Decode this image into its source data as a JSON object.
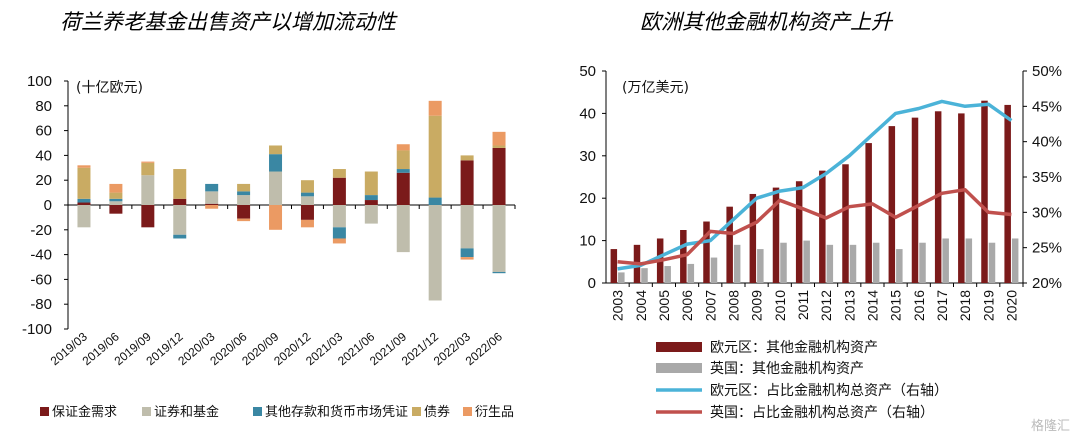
{
  "watermark": "格隆汇",
  "chart_data": [
    {
      "type": "bar",
      "title": "荷兰养老基金出售资产以增加流动性",
      "unit_label": "(十亿欧元)",
      "stacked": true,
      "ylim": [
        -100,
        100
      ],
      "yticks": [
        100,
        80,
        60,
        40,
        20,
        0,
        -20,
        -40,
        -60,
        -80,
        -100
      ],
      "categories": [
        "2019/03",
        "2019/06",
        "2019/09",
        "2019/12",
        "2020/03",
        "2020/06",
        "2020/09",
        "2020/12",
        "2021/03",
        "2021/06",
        "2021/09",
        "2021/12",
        "2022/03",
        "2022/06"
      ],
      "legend_position": "bottom",
      "series": [
        {
          "name": "保证金需求",
          "color": "#7b1a1a",
          "values": [
            2,
            -7,
            -18,
            5,
            1,
            -11,
            0,
            -12,
            22,
            4,
            26,
            0,
            36,
            46
          ]
        },
        {
          "name": "证券和基金",
          "color": "#bfbdac",
          "values": [
            -18,
            3,
            24,
            -24,
            10,
            8,
            27,
            7,
            -18,
            -15,
            -38,
            -77,
            -35,
            -54
          ]
        },
        {
          "name": "其他存款和货币市场凭证",
          "color": "#3a87a3",
          "values": [
            3,
            2,
            0,
            -3,
            6,
            3,
            14,
            3,
            -9,
            4,
            3,
            6,
            -7,
            -1
          ]
        },
        {
          "name": "债券",
          "color": "#c9ab63",
          "values": [
            25,
            5,
            10,
            24,
            0,
            6,
            7,
            10,
            7,
            19,
            15,
            66,
            4,
            2
          ]
        },
        {
          "name": "衍生品",
          "color": "#eb9a63",
          "values": [
            2,
            7,
            1,
            0,
            -3,
            -2,
            -20,
            -6,
            -4,
            0,
            5,
            12,
            -2,
            11
          ]
        }
      ]
    },
    {
      "type": "bar+line",
      "title": "欧洲其他金融机构资产上升",
      "unit_label": "(万亿美元)",
      "ylim": [
        0,
        50
      ],
      "yticks": [
        0,
        10,
        20,
        30,
        40,
        50
      ],
      "y2lim": [
        20,
        50
      ],
      "y2ticks": [
        "20%",
        "25%",
        "30%",
        "35%",
        "40%",
        "45%",
        "50%"
      ],
      "y2values": [
        20,
        25,
        30,
        35,
        40,
        45,
        50
      ],
      "categories": [
        "2003",
        "2004",
        "2005",
        "2006",
        "2007",
        "2008",
        "2009",
        "2010",
        "2011",
        "2012",
        "2013",
        "2014",
        "2015",
        "2016",
        "2017",
        "2018",
        "2019",
        "2020"
      ],
      "legend_position": "bottom",
      "bars": [
        {
          "name": "欧元区：其他金融机构资产",
          "color": "#7b1a1a",
          "values": [
            8,
            9,
            10.5,
            12.5,
            14.5,
            18,
            21,
            22.5,
            24,
            26.5,
            28,
            33,
            37,
            39,
            40.5,
            40,
            43,
            42
          ]
        },
        {
          "name": "英国：其他金融机构资产",
          "color": "#a9a9a9",
          "values": [
            2.5,
            3.5,
            4,
            4.5,
            6,
            9,
            8,
            9.5,
            10,
            9,
            9,
            9.5,
            8,
            9.5,
            10.5,
            10.5,
            9.5,
            10.5
          ]
        }
      ],
      "lines": [
        {
          "name": "欧元区：占比金融机构总资产（右轴）",
          "color": "#4bb3d8",
          "values": [
            22.0,
            22.5,
            24.0,
            25.5,
            26.0,
            29.0,
            32.0,
            33.0,
            33.5,
            35.5,
            38.0,
            41.0,
            44.0,
            44.7,
            45.7,
            45.0,
            45.3,
            43.0
          ]
        },
        {
          "name": "英国：占比金融机构总资产（右轴）",
          "color": "#c0504d",
          "values": [
            23.0,
            22.7,
            23.3,
            24.0,
            27.3,
            27.0,
            28.6,
            31.7,
            30.5,
            29.2,
            30.8,
            31.2,
            29.3,
            31.0,
            32.7,
            33.2,
            30.0,
            29.7
          ]
        }
      ]
    }
  ]
}
